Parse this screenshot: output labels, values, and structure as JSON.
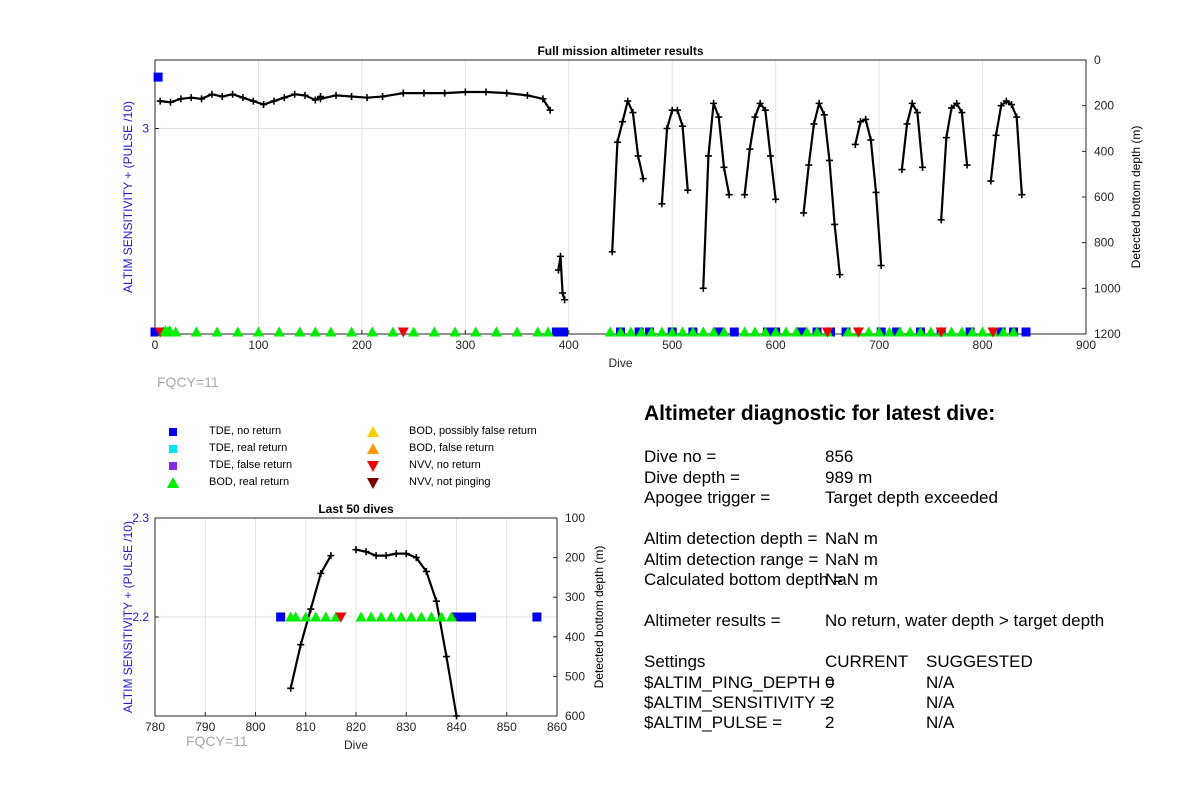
{
  "chart_data": [
    {
      "type": "scatter",
      "title": "Full mission altimeter results",
      "xlabel": "Dive",
      "ylabel_left": "ALTIM SENSITIVITY + (PULSE /10)",
      "ylabel_right": "Detected bottom depth (m)",
      "xlim": [
        0,
        900
      ],
      "xticks": [
        0,
        100,
        200,
        300,
        400,
        500,
        600,
        700,
        800,
        900
      ],
      "ylim_left": [
        1.8,
        3.4
      ],
      "yticks_left": [
        3
      ],
      "ylim_right": [
        1200,
        0
      ],
      "yticks_right": [
        0,
        200,
        400,
        600,
        800,
        1000,
        1200
      ],
      "grid": true,
      "annotation": "FQCY=11",
      "depth_segments": [
        {
          "x": [
            5,
            15,
            25,
            35,
            45,
            55,
            65,
            75,
            85,
            95,
            105,
            115,
            125,
            135,
            145,
            155,
            160
          ],
          "y": [
            180,
            185,
            170,
            165,
            170,
            150,
            160,
            150,
            165,
            180,
            195,
            180,
            165,
            150,
            155,
            175,
            160
          ]
        },
        {
          "x": [
            160,
            175,
            190,
            205,
            220,
            240,
            260,
            280,
            300,
            320,
            340,
            360,
            375,
            382
          ],
          "y": [
            170,
            155,
            160,
            165,
            160,
            145,
            145,
            145,
            140,
            140,
            145,
            155,
            170,
            220
          ]
        },
        {
          "x": [
            390,
            392,
            394,
            396
          ],
          "y": [
            920,
            860,
            1020,
            1050
          ]
        },
        {
          "x": [
            442,
            447,
            452,
            457,
            462,
            467,
            472
          ],
          "y": [
            840,
            360,
            270,
            180,
            230,
            420,
            520
          ]
        },
        {
          "x": [
            490,
            495,
            500,
            505,
            510,
            515
          ],
          "y": [
            630,
            300,
            220,
            220,
            290,
            570
          ]
        },
        {
          "x": [
            530,
            535,
            540,
            545,
            550,
            555
          ],
          "y": [
            1000,
            420,
            190,
            250,
            470,
            590
          ]
        },
        {
          "x": [
            570,
            575,
            580,
            585,
            590,
            595,
            600
          ],
          "y": [
            590,
            390,
            250,
            190,
            220,
            420,
            610
          ]
        },
        {
          "x": [
            627,
            632,
            637,
            642,
            647,
            652,
            657,
            662
          ],
          "y": [
            670,
            460,
            280,
            190,
            240,
            440,
            720,
            940
          ]
        },
        {
          "x": [
            677,
            682,
            687,
            692,
            697,
            702
          ],
          "y": [
            370,
            270,
            260,
            350,
            580,
            900
          ]
        },
        {
          "x": [
            722,
            727,
            732,
            737,
            742
          ],
          "y": [
            480,
            280,
            190,
            230,
            470
          ]
        },
        {
          "x": [
            760,
            765,
            770,
            775,
            780,
            785
          ],
          "y": [
            700,
            340,
            210,
            190,
            230,
            460
          ]
        },
        {
          "x": [
            808,
            813,
            818,
            823,
            828,
            833,
            838
          ],
          "y": [
            530,
            330,
            200,
            180,
            195,
            250,
            590
          ]
        }
      ],
      "markers": [
        {
          "label": "TDE, no return",
          "color": "#0000ee",
          "shape": "square",
          "x": [
            0,
            5,
            388,
            395,
            450,
            468,
            478,
            500,
            520,
            545,
            560,
            592,
            600,
            625,
            640,
            653,
            668,
            702,
            717,
            740,
            760,
            788,
            818,
            830,
            842
          ]
        },
        {
          "label": "BOD, real return",
          "color": "#00ee00",
          "shape": "triangle-up",
          "x": [
            8,
            12,
            15,
            20,
            40,
            60,
            80,
            100,
            120,
            140,
            155,
            170,
            190,
            210,
            230,
            250,
            270,
            290,
            310,
            330,
            350,
            370,
            380,
            440,
            450,
            460,
            470,
            480,
            490,
            500,
            510,
            520,
            530,
            540,
            550,
            570,
            580,
            590,
            600,
            610,
            620,
            630,
            640,
            650,
            670,
            680,
            690,
            700,
            710,
            720,
            730,
            740,
            750,
            760,
            770,
            780,
            790,
            800,
            810,
            820,
            830
          ]
        },
        {
          "label": "NVV, no return",
          "color": "#ee0000",
          "shape": "triangle-down",
          "x": [
            5,
            240,
            650,
            680,
            760,
            810
          ]
        }
      ]
    },
    {
      "type": "scatter",
      "title": "Last 50 dives",
      "xlabel": "Dive",
      "ylabel_left": "ALTIM SENSITIVITY + (PULSE /10)",
      "ylabel_right": "Detected bottom depth (m)",
      "xlim": [
        780,
        860
      ],
      "xticks": [
        780,
        790,
        800,
        810,
        820,
        830,
        840,
        850,
        860
      ],
      "ylim_left": [
        2.1,
        2.3
      ],
      "yticks_left": [
        2.2,
        2.3
      ],
      "ylim_right": [
        600,
        100
      ],
      "yticks_right": [
        100,
        200,
        300,
        400,
        500,
        600
      ],
      "grid": true,
      "annotation": "FQCY=11",
      "depth_segments": [
        {
          "x": [
            807,
            809,
            811,
            813,
            815
          ],
          "y": [
            530,
            420,
            330,
            240,
            195
          ]
        },
        {
          "x": [
            820,
            822,
            824,
            826,
            828,
            830,
            832,
            834,
            836,
            838,
            840
          ],
          "y": [
            180,
            185,
            195,
            195,
            190,
            190,
            200,
            235,
            310,
            450,
            600
          ]
        }
      ],
      "markers": [
        {
          "label": "TDE, no return",
          "color": "#0000ee",
          "shape": "square",
          "x": [
            805,
            840,
            841,
            842,
            843,
            856
          ]
        },
        {
          "label": "BOD, real return",
          "color": "#00ee00",
          "shape": "triangle-up",
          "x": [
            807,
            808,
            810,
            812,
            814,
            816,
            821,
            823,
            825,
            827,
            829,
            831,
            833,
            835,
            837,
            839
          ]
        },
        {
          "label": "NVV, no return",
          "color": "#ee0000",
          "shape": "triangle-down",
          "x": [
            817
          ]
        }
      ]
    }
  ],
  "legend": {
    "left": [
      {
        "label": "TDE, no return",
        "color": "#0000ee",
        "shape": "square"
      },
      {
        "label": "TDE, real return",
        "color": "#00e5ee",
        "shape": "square"
      },
      {
        "label": "TDE, false return",
        "color": "#8a2be2",
        "shape": "square"
      },
      {
        "label": "BOD, real return",
        "color": "#00ee00",
        "shape": "triangle-up"
      }
    ],
    "right": [
      {
        "label": "BOD, possibly false return",
        "color": "#ffcc00",
        "shape": "triangle-up"
      },
      {
        "label": "BOD, false return",
        "color": "#ff9900",
        "shape": "triangle-up"
      },
      {
        "label": "NVV, no return",
        "color": "#ee0000",
        "shape": "triangle-down"
      },
      {
        "label": "NVV, not pinging",
        "color": "#7a0000",
        "shape": "triangle-down"
      }
    ]
  },
  "diagnostic": {
    "title": "Altimeter diagnostic for latest dive:",
    "dive_no_label": "Dive no =",
    "dive_no": "856",
    "dive_depth_label": "Dive depth =",
    "dive_depth": "989 m",
    "apogee_label": "Apogee trigger =",
    "apogee": "Target depth exceeded",
    "detect_depth_label": "Altim detection depth =",
    "detect_depth": "NaN m",
    "detect_range_label": "Altim detection range =",
    "detect_range": "NaN m",
    "calc_bottom_label": "Calculated bottom depth =",
    "calc_bottom": "NaN m",
    "results_label": "Altimeter results =",
    "results": "No return, water depth > target depth",
    "settings_label": "Settings",
    "current_label": "CURRENT",
    "suggested_label": "SUGGESTED",
    "ping_depth_label": "$ALTIM_PING_DEPTH =",
    "ping_depth_current": "0",
    "ping_depth_suggested": "N/A",
    "sensitivity_label": "$ALTIM_SENSITIVITY =",
    "sensitivity_current": "2",
    "sensitivity_suggested": "N/A",
    "pulse_label": "$ALTIM_PULSE =",
    "pulse_current": "2",
    "pulse_suggested": "N/A"
  }
}
